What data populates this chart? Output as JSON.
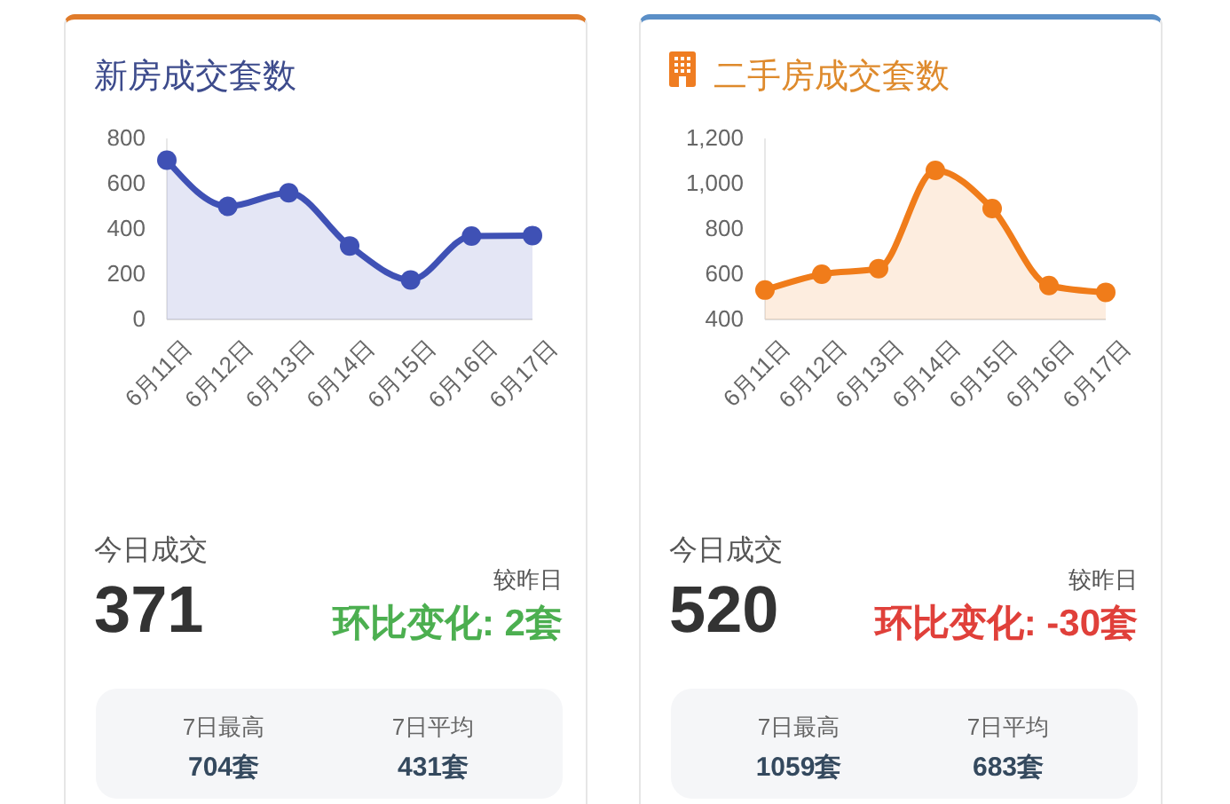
{
  "chart_data": [
    {
      "type": "area",
      "title": "新房成交套数",
      "categories": [
        "6月11日",
        "6月12日",
        "6月13日",
        "6月14日",
        "6月15日",
        "6月16日",
        "6月17日"
      ],
      "values": [
        704,
        500,
        560,
        325,
        175,
        369,
        371
      ],
      "color": "#3f51b5",
      "ylim": [
        0,
        800
      ],
      "yticks": [
        0,
        200,
        400,
        600,
        800
      ],
      "marker": "circle",
      "annotations": [
        "今日成交",
        "371",
        "较昨日",
        "环比变化: 2套",
        "7日最高",
        "704套",
        "7日平均",
        "431套"
      ]
    },
    {
      "type": "area",
      "title": "二手房成交套数",
      "categories": [
        "6月11日",
        "6月12日",
        "6月13日",
        "6月14日",
        "6月15日",
        "6月16日",
        "6月17日"
      ],
      "values": [
        530,
        600,
        625,
        1059,
        890,
        550,
        520
      ],
      "color": "#f07c1a",
      "ylim": [
        400,
        1200
      ],
      "yticks": [
        400,
        600,
        800,
        {
          "value": 1000,
          "label": "1,000"
        },
        {
          "value": 1200,
          "label": "1,200"
        }
      ],
      "marker": "circle",
      "annotations": [
        "今日成交",
        "520",
        "较昨日",
        "环比变化: -30套",
        "7日最高",
        "1059套",
        "7日平均",
        "683套"
      ]
    }
  ]
}
